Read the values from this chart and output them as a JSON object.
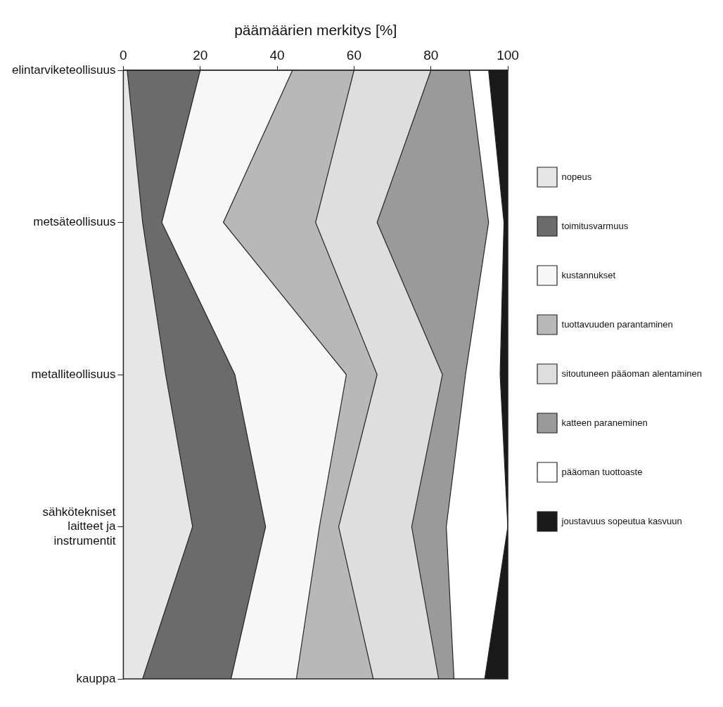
{
  "chart_data": {
    "type": "area",
    "orientation": "horizontal",
    "stacked": true,
    "xlabel": "päämäärien merkitys [%]",
    "categories": [
      "elintarviketeollisuus",
      "metsäteollisuus",
      "metalliteollisuus",
      "sähkötekniset laitteet ja instrumentit",
      "kauppa"
    ],
    "xlim": [
      0,
      100
    ],
    "xticks": [
      0,
      20,
      40,
      60,
      80,
      100
    ],
    "legend": "right",
    "series": [
      {
        "name": "nopeus",
        "color": "#e6e6e6",
        "values": [
          1,
          5,
          11,
          18,
          5
        ]
      },
      {
        "name": "toimitusvarmuus",
        "color": "#6b6b6b",
        "values": [
          19,
          5,
          18,
          19,
          23
        ]
      },
      {
        "name": "kustannukset",
        "color": "#f7f7f7",
        "values": [
          24,
          16,
          29,
          14,
          17
        ]
      },
      {
        "name": "tuottavuuden parantaminen",
        "color": "#b8b8b8",
        "values": [
          16,
          24,
          8,
          5,
          20
        ]
      },
      {
        "name": "sitoutuneen pääoman alentaminen",
        "color": "#dedede",
        "values": [
          20,
          16,
          17,
          19,
          17
        ]
      },
      {
        "name": "katteen paraneminen",
        "color": "#9a9a9a",
        "values": [
          10,
          29,
          6,
          9,
          4
        ]
      },
      {
        "name": "pääoman tuottoaste",
        "color": "#ffffff",
        "values": [
          5,
          4,
          9,
          16,
          8
        ]
      },
      {
        "name": "joustavuus sopeutua kasvuun",
        "color": "#1a1a1a",
        "values": [
          5,
          1,
          2,
          0,
          6
        ]
      }
    ]
  }
}
